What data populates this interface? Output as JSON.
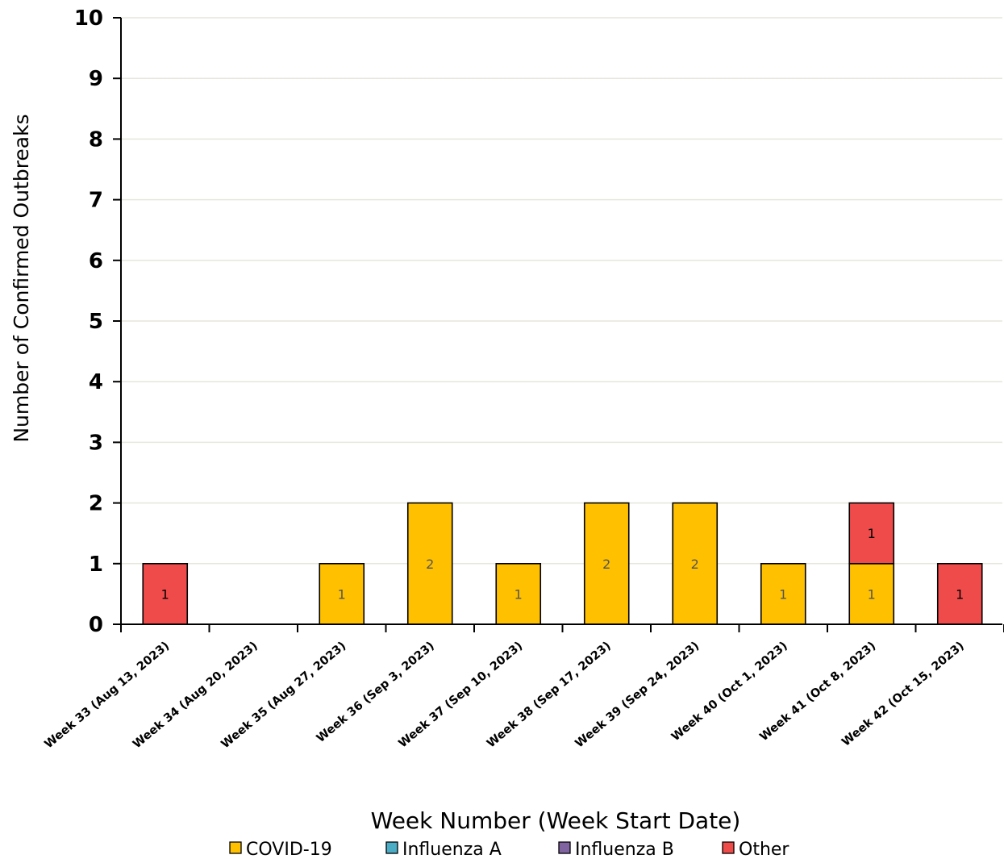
{
  "chart_data": {
    "type": "bar",
    "stacked": true,
    "title": "",
    "xlabel": "Week Number (Week Start Date)",
    "ylabel": "Number of Confirmed Outbreaks",
    "ylim": [
      0,
      10
    ],
    "yticks": [
      "0",
      "1",
      "2",
      "3",
      "4",
      "5",
      "6",
      "7",
      "8",
      "9",
      "10"
    ],
    "grid": "horizontal",
    "legend_position": "bottom",
    "categories": [
      "Week 33 (Aug 13, 2023)",
      "Week 34 (Aug 20, 2023)",
      "Week 35 (Aug 27, 2023)",
      "Week 36 (Sep 3, 2023)",
      "Week 37 (Sep 10, 2023)",
      "Week 38 (Sep 17, 2023)",
      "Week 39 (Sep 24, 2023)",
      "Week 40 (Oct 1, 2023)",
      "Week 41 (Oct 8, 2023)",
      "Week 42 (Oct 15, 2023)"
    ],
    "series": [
      {
        "name": "COVID-19",
        "color": "#FFC000",
        "label_color": "#555555",
        "values": [
          0,
          0,
          1,
          2,
          1,
          2,
          2,
          1,
          1,
          0
        ]
      },
      {
        "name": "Influenza A",
        "color": "#4BACC6",
        "label_color": "#000000",
        "values": [
          0,
          0,
          0,
          0,
          0,
          0,
          0,
          0,
          0,
          0
        ]
      },
      {
        "name": "Influenza B",
        "color": "#8064A2",
        "label_color": "#000000",
        "values": [
          0,
          0,
          0,
          0,
          0,
          0,
          0,
          0,
          0,
          0
        ]
      },
      {
        "name": "Other",
        "color": "#F04B4B",
        "label_color": "#000000",
        "values": [
          1,
          0,
          0,
          0,
          0,
          0,
          0,
          0,
          1,
          1
        ]
      }
    ]
  }
}
